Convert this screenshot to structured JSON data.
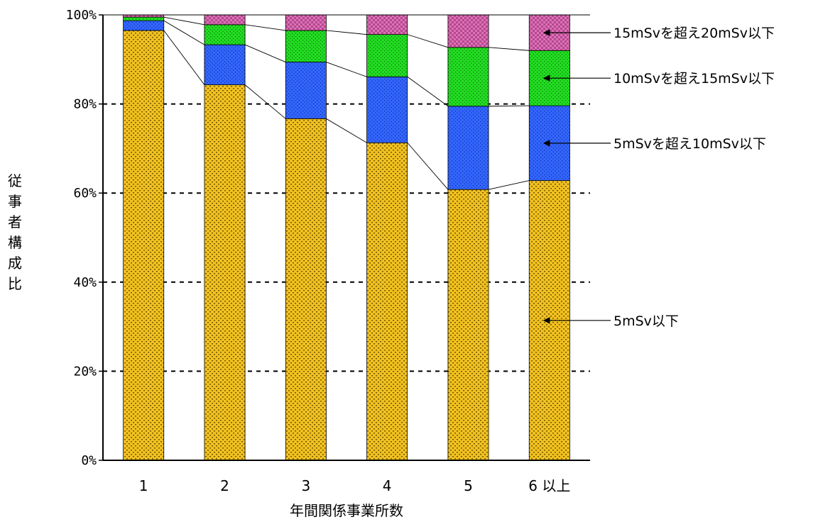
{
  "chart_data": {
    "type": "bar",
    "stacked": true,
    "percent_stacked": true,
    "xlabel": "年間関係事業所数",
    "ylabel": "従事者構成比",
    "categories": [
      "1",
      "2",
      "3",
      "4",
      "5",
      "6 以上"
    ],
    "y_ticks": [
      "0%",
      "20%",
      "40%",
      "60%",
      "80%",
      "100%"
    ],
    "ylim": [
      0,
      100
    ],
    "grid": "dashed horizontal",
    "series_connector_lines": true,
    "series": [
      {
        "name": "5mSv以下",
        "color": "#F0C020",
        "pattern": "dots",
        "values": [
          96.5,
          84.3,
          76.7,
          71.3,
          60.8,
          62.8
        ]
      },
      {
        "name": "5mSvを超え10mSv以下",
        "color": "#3366FF",
        "pattern": "dots",
        "values": [
          2.2,
          9.0,
          12.7,
          14.8,
          18.7,
          16.8
        ]
      },
      {
        "name": "10mSvを超え15mSv以下",
        "color": "#22DD22",
        "pattern": "dots",
        "values": [
          0.8,
          4.5,
          7.1,
          9.5,
          13.2,
          12.4
        ]
      },
      {
        "name": "15mSvを超え20mSv以下",
        "color": "#E060B0",
        "pattern": "checks",
        "values": [
          0.5,
          2.2,
          3.5,
          4.4,
          7.3,
          8.0
        ]
      }
    ],
    "legend": {
      "placement": "right",
      "order": [
        "15mSvを超え20mSv以下",
        "10mSvを超え15mSv以下",
        "5mSvを超え10mSv以下",
        "5mSv以下"
      ]
    }
  }
}
